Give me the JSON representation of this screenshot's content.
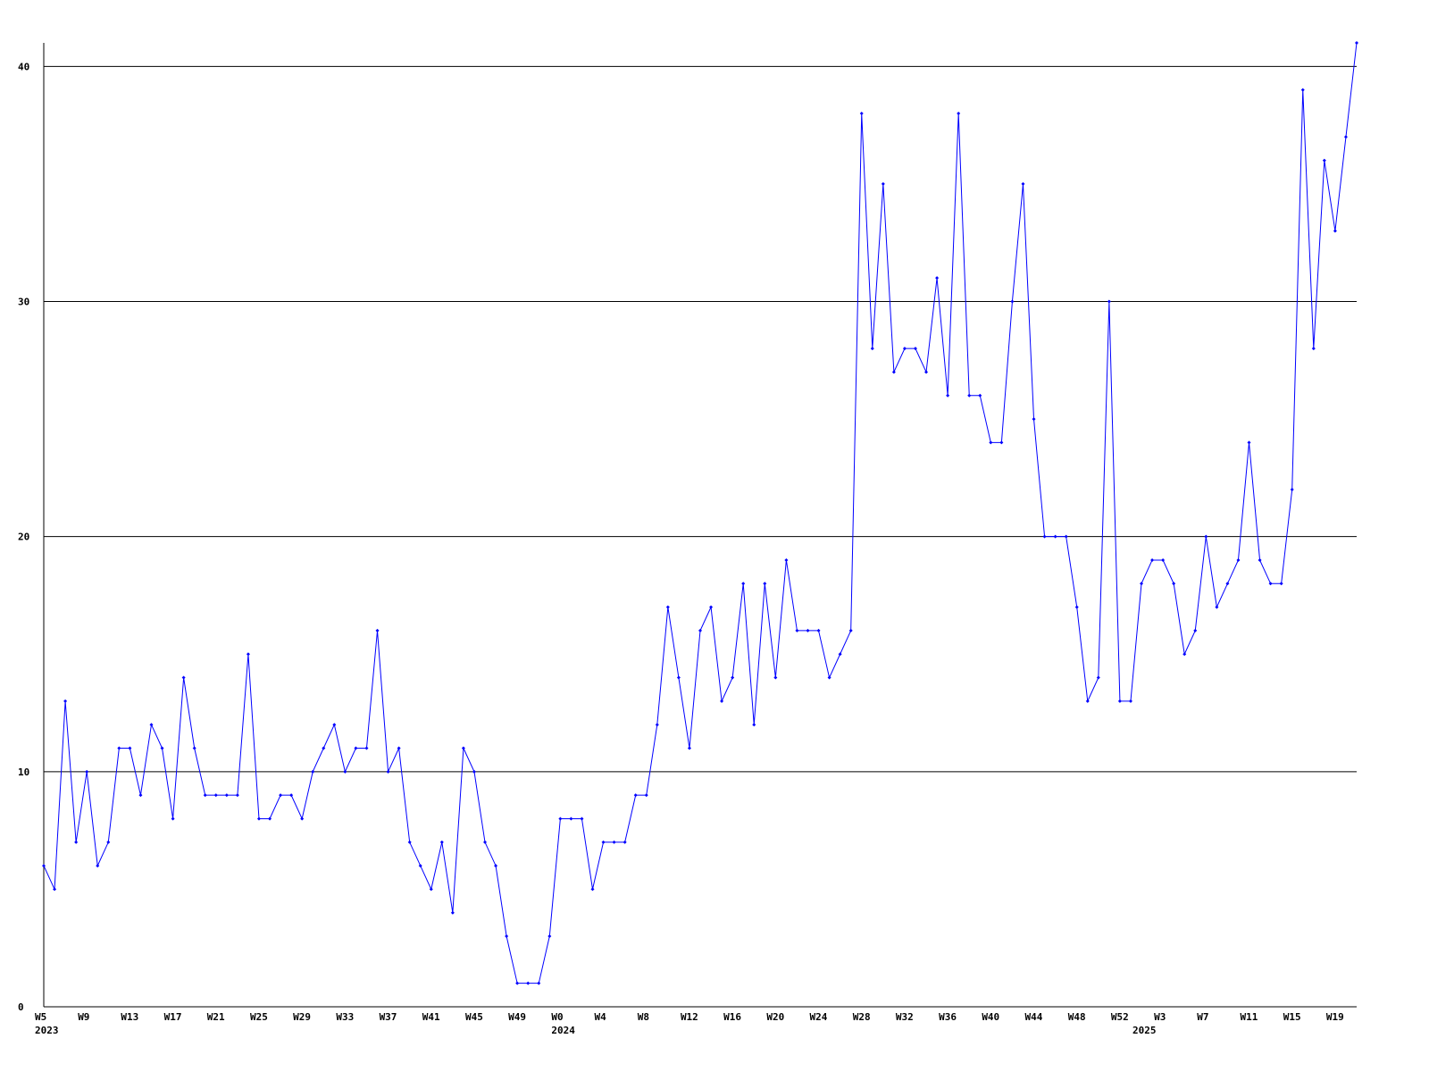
{
  "chart_data": {
    "type": "line",
    "categories": [
      "W5",
      null,
      null,
      null,
      "W9",
      null,
      null,
      null,
      "W13",
      null,
      null,
      null,
      "W17",
      null,
      null,
      null,
      "W21",
      null,
      null,
      null,
      "W25",
      null,
      null,
      null,
      "W29",
      null,
      null,
      null,
      "W33",
      null,
      null,
      null,
      "W37",
      null,
      null,
      null,
      "W41",
      null,
      null,
      null,
      "W45",
      null,
      null,
      null,
      "W49",
      null,
      null,
      null,
      "W0",
      null,
      null,
      null,
      "W4",
      null,
      null,
      null,
      "W8",
      null,
      null,
      null,
      "W12",
      null,
      null,
      null,
      "W16",
      null,
      null,
      null,
      "W20",
      null,
      null,
      null,
      "W24",
      null,
      null,
      null,
      "W28",
      null,
      null,
      null,
      "W32",
      null,
      null,
      null,
      "W36",
      null,
      null,
      null,
      "W40",
      null,
      null,
      null,
      "W44",
      null,
      null,
      null,
      "W48",
      null,
      null,
      null,
      "W52",
      null,
      null,
      null,
      "W3",
      null,
      null,
      null,
      "W7",
      null,
      null,
      null,
      "W11",
      null,
      null,
      null,
      "W15",
      null,
      null,
      null,
      "W19",
      null,
      null
    ],
    "year_labels": [
      {
        "text": "2023",
        "category": 0
      },
      {
        "text": "2024",
        "category": 48
      },
      {
        "text": "2025",
        "category": 102
      }
    ],
    "series": [
      {
        "color": "#0000ff",
        "values": [
          6,
          5,
          13,
          7,
          10,
          6,
          7,
          11,
          11,
          9,
          12,
          11,
          8,
          14,
          11,
          9,
          9,
          9,
          9,
          15,
          8,
          8,
          9,
          9,
          8,
          10,
          11,
          12,
          10,
          11,
          11,
          16,
          10,
          11,
          7,
          6,
          5,
          7,
          4,
          11,
          10,
          7,
          6,
          3,
          1,
          1,
          1,
          3,
          8,
          8,
          8,
          5,
          7,
          7,
          7,
          9,
          9,
          12,
          17,
          14,
          11,
          16,
          17,
          13,
          14,
          18,
          12,
          18,
          14,
          19,
          16,
          16,
          16,
          14,
          15,
          16,
          38,
          28,
          35,
          27,
          28,
          28,
          27,
          31,
          26,
          38,
          26,
          26,
          24,
          24,
          30,
          35,
          25,
          20,
          20,
          20,
          17,
          13,
          14,
          30,
          13,
          13,
          18,
          19,
          19,
          18,
          15,
          16,
          20,
          17,
          18,
          19,
          24,
          19,
          18,
          18,
          22,
          39,
          28,
          36,
          33,
          37,
          41
        ]
      }
    ],
    "ylim": [
      0,
      41
    ],
    "yticks": [
      0,
      10,
      20,
      30,
      40
    ],
    "grid": true
  }
}
